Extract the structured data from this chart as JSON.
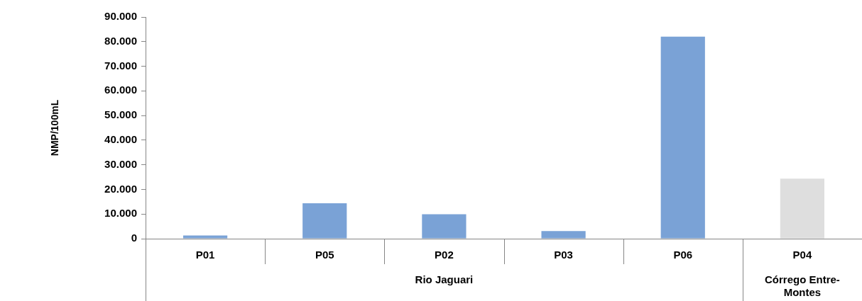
{
  "chart_data": {
    "type": "bar",
    "categories": [
      "P01",
      "P05",
      "P02",
      "P03",
      "P06",
      "P04"
    ],
    "values": [
      1300,
      14400,
      9900,
      3100,
      82000,
      24400
    ],
    "colors": [
      "#7aa2d6",
      "#7aa2d6",
      "#7aa2d6",
      "#7aa2d6",
      "#7aa2d6",
      "#dedede"
    ],
    "ylabel": "NMP/100mL",
    "ylim": [
      0,
      90000
    ],
    "yticks": [
      {
        "value": 0,
        "label": "0"
      },
      {
        "value": 10000,
        "label": "10.000"
      },
      {
        "value": 20000,
        "label": "20.000"
      },
      {
        "value": 30000,
        "label": "30.000"
      },
      {
        "value": 40000,
        "label": "40.000"
      },
      {
        "value": 50000,
        "label": "50.000"
      },
      {
        "value": 60000,
        "label": "60.000"
      },
      {
        "value": 70000,
        "label": "70.000"
      },
      {
        "value": 80000,
        "label": "80.000"
      },
      {
        "value": 90000,
        "label": "90.000"
      }
    ],
    "annotations": [
      "Rio Jaguari",
      "Córrego Entre-Montes"
    ]
  }
}
